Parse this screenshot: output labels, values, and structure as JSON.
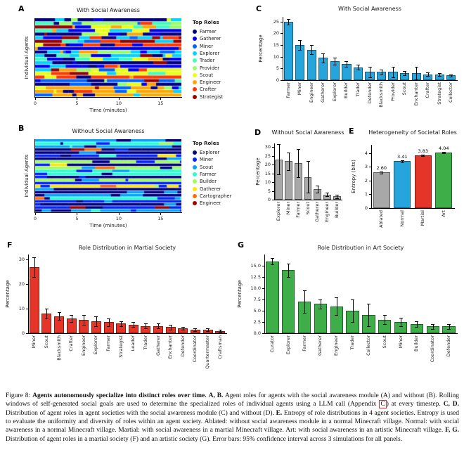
{
  "figure_caption": {
    "segments": [
      {
        "t": "Figure 8: "
      },
      {
        "t": "Agents autonomously specialize into distinct roles over time.",
        "b": true
      },
      {
        "t": " "
      },
      {
        "t": "A, B.",
        "b": true
      },
      {
        "t": " Agent roles for agents with the social awareness module (A) and without (B). Rolling windows of self-generated social goals are used to determine the specialized roles of individual agents using a LLM call (Appendix "
      },
      {
        "t": "C",
        "box": true
      },
      {
        "t": ") at every timestep. "
      },
      {
        "t": "C, D.",
        "b": true
      },
      {
        "t": " Distribution of agent roles in agent societies with the social awareness module (C) and without (D). "
      },
      {
        "t": "E.",
        "b": true
      },
      {
        "t": " Entropy of role distributions in 4 agent societies. Entropy is used to evaluate the uniformity and diversity of roles within an agent society. Ablated: without social awareness module in a normal Minecraft village. Normal: with social awareness in a normal Minecraft village. Martial: with social awareness in a martial Minecraft village. Art: with social awareness in an artistic Minecraft village. "
      },
      {
        "t": "F, G.",
        "b": true
      },
      {
        "t": " Distribution of agent roles in a martial society (F) and an artistic society (G). Error bars: 95% confidence interval across 3 simulations for all panels."
      }
    ]
  },
  "chart_data": [
    {
      "panel": "A",
      "type": "heatmap",
      "title": "With Social Awareness",
      "xlabel": "Time (minutes)",
      "ylabel": "Individual Agents",
      "xticks": [
        0,
        5,
        10,
        15
      ],
      "x_max_minutes": 17.5,
      "rows": 22,
      "legend_title": "Top Roles",
      "roles": [
        "Farmer",
        "Gatherer",
        "Miner",
        "Explorer",
        "Trader",
        "Provider",
        "Scout",
        "Engineer",
        "Crafter",
        "Strategist"
      ],
      "colors": [
        "#000080",
        "#0000f0",
        "#0064ff",
        "#00d4ff",
        "#3cffba",
        "#97ff60",
        "#e8ff0e",
        "#ffa600",
        "#ff3800",
        "#990000"
      ],
      "weights": [
        3,
        2.5,
        2.5,
        2,
        1,
        1,
        1.3,
        1.2,
        1,
        0.9
      ],
      "dom_p": 0.5,
      "seed": 7
    },
    {
      "panel": "B",
      "type": "heatmap",
      "title": "Without Social Awareness",
      "xlabel": "Time (minutes)",
      "ylabel": "Individual Agents",
      "xticks": [
        0,
        5,
        10,
        15
      ],
      "x_max_minutes": 17.5,
      "rows": 24,
      "legend_title": "Top Roles",
      "roles": [
        "Explorer",
        "Miner",
        "Scout",
        "Farmer",
        "Builder",
        "Gatherer",
        "Cartographer",
        "Engineer"
      ],
      "colors": [
        "#000080",
        "#0022ff",
        "#00a4ff",
        "#22ffd2",
        "#9cff5a",
        "#ffe600",
        "#ff6e00",
        "#a00000"
      ],
      "weights": [
        5,
        3.5,
        2.2,
        1,
        0.8,
        0.9,
        0.5,
        0.5
      ],
      "dom_p": 0.72,
      "seed": 3
    },
    {
      "panel": "C",
      "type": "bar",
      "title": "With Social Awareness",
      "ylabel": "Percentage",
      "categories": [
        "Farmer",
        "Miner",
        "Engineer",
        "Gatherer",
        "Explorer",
        "Builder",
        "Trader",
        "Defender",
        "Blacksmith",
        "Provider",
        "Scout",
        "Enchanter",
        "Crafter",
        "Strategist",
        "Collector"
      ],
      "values": [
        25,
        15,
        13,
        9.5,
        8,
        7,
        5.5,
        3.5,
        3.5,
        3.5,
        3,
        3,
        2.5,
        2.5,
        2
      ],
      "errors": [
        1.2,
        2,
        2,
        2,
        1.5,
        1.2,
        1,
        2.3,
        1,
        2.3,
        0.8,
        2.8,
        0.8,
        0.6,
        0.5
      ],
      "bar_color": "#25a5dc",
      "ymax": 27,
      "yticks": [
        0,
        5,
        10,
        15,
        20,
        25
      ]
    },
    {
      "panel": "D",
      "type": "bar",
      "title": "Without Social Awareness",
      "ylabel": "Percentage",
      "categories": [
        "Explorer",
        "Miner",
        "Farmer",
        "Scout",
        "Gatherer",
        "Engineer",
        "Builder"
      ],
      "values": [
        23,
        22,
        21,
        13,
        6,
        3,
        2
      ],
      "errors": [
        8.5,
        5,
        8,
        9,
        2,
        1,
        1
      ],
      "bar_color": "#a8a8a8",
      "ymax": 32,
      "yticks": [
        0,
        5,
        10,
        15,
        20,
        25,
        30
      ]
    },
    {
      "panel": "E",
      "type": "bar",
      "title": "Heterogeneity of Societal Roles",
      "ylabel": "Entropy (bits)",
      "categories": [
        "Ablated",
        "Normal",
        "Martial",
        "Art"
      ],
      "values": [
        2.6,
        3.41,
        3.83,
        4.04
      ],
      "errors": [
        0.08,
        0.07,
        0.06,
        0.05
      ],
      "value_labels": [
        "2.60",
        "3.41",
        "3.83",
        "4.04"
      ],
      "bar_colors": [
        "#a8a8a8",
        "#25a5dc",
        "#e53528",
        "#3eae49"
      ],
      "ymax": 4.6,
      "yticks": [
        0,
        1,
        2,
        3,
        4
      ]
    },
    {
      "panel": "F",
      "type": "bar",
      "title": "Role Distribution in Martial Society",
      "ylabel": "Percentage",
      "categories": [
        "Miner",
        "Scout",
        "Blacksmith",
        "Crafter",
        "Engineer",
        "Explorer",
        "Farmer",
        "Strategist",
        "Leader",
        "Trader",
        "Gatherer",
        "Enchanter",
        "Defender",
        "Coordinator",
        "Quartermaster",
        "Craftsman"
      ],
      "values": [
        27,
        8,
        7,
        6,
        5.5,
        5,
        4.5,
        4,
        3.5,
        3,
        3,
        2.5,
        2,
        1.5,
        1.5,
        1
      ],
      "errors": [
        4,
        2,
        1.5,
        1.5,
        2,
        2,
        1.5,
        1,
        1,
        1,
        1,
        1,
        0.6,
        0.5,
        0.5,
        0.4
      ],
      "bar_color": "#e53528",
      "ymax": 32,
      "yticks": [
        0,
        10,
        20,
        30
      ]
    },
    {
      "panel": "G",
      "type": "bar",
      "title": "Role Distribution in Art Society",
      "ylabel": "Percentage",
      "categories": [
        "Curator",
        "Explorer",
        "Farmer",
        "Gatherer",
        "Engineer",
        "Trader",
        "Collector",
        "Scout",
        "Miner",
        "Builder",
        "Coordinator",
        "Defender"
      ],
      "values": [
        16,
        14,
        7,
        6.5,
        6,
        5,
        4,
        3,
        2.5,
        2,
        1.5,
        1.5
      ],
      "errors": [
        0.7,
        1.5,
        2.5,
        1,
        2,
        2.5,
        2.5,
        1,
        1,
        0.6,
        0.5,
        0.5
      ],
      "bar_color": "#3eae49",
      "ymax": 17.5,
      "yticks": [
        0,
        2.5,
        5,
        7.5,
        10,
        12.5,
        15
      ],
      "ytick_labels": [
        "0.0",
        "2.5",
        "5.0",
        "7.5",
        "10.0",
        "12.5",
        "15.0"
      ]
    }
  ]
}
